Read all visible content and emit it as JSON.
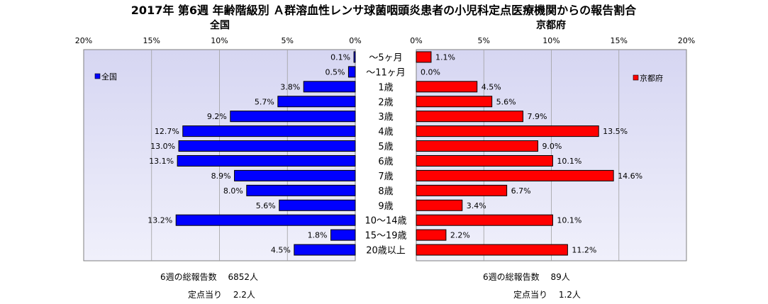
{
  "chart_data": {
    "type": "bar",
    "title": "2017年 第6週 年齢階級別 Ａ群溶血性レンサ球菌咽頭炎患者の小児科定点医療機関からの報告割合",
    "categories": [
      "～5ヶ月",
      "～11ヶ月",
      "1歳",
      "2歳",
      "3歳",
      "4歳",
      "5歳",
      "6歳",
      "7歳",
      "8歳",
      "9歳",
      "10～14歳",
      "15～19歳",
      "20歳以上"
    ],
    "xlim": [
      0,
      20
    ],
    "tick_labels": [
      "0%",
      "5%",
      "10%",
      "15%",
      "20%"
    ],
    "grid": true,
    "series": [
      {
        "name": "全国",
        "panel_title": "全国",
        "legend": "全国",
        "side": "left",
        "color": "#0000ff",
        "values": [
          0.1,
          0.5,
          3.8,
          5.7,
          9.2,
          12.7,
          13.0,
          13.1,
          8.9,
          8.0,
          5.6,
          13.2,
          1.8,
          4.5
        ],
        "value_labels": [
          "0.1%",
          "0.5%",
          "3.8%",
          "5.7%",
          "9.2%",
          "12.7%",
          "13.0%",
          "13.1%",
          "8.9%",
          "8.0%",
          "5.6%",
          "13.2%",
          "1.8%",
          "4.5%"
        ]
      },
      {
        "name": "京都府",
        "panel_title": "京都府",
        "legend": "京都府",
        "side": "right",
        "color": "#ff0000",
        "values": [
          1.1,
          0.0,
          4.5,
          5.6,
          7.9,
          13.5,
          9.0,
          10.1,
          14.6,
          6.7,
          3.4,
          10.1,
          2.2,
          11.2
        ],
        "value_labels": [
          "1.1%",
          "0.0%",
          "4.5%",
          "5.6%",
          "7.9%",
          "13.5%",
          "9.0%",
          "10.1%",
          "14.6%",
          "6.7%",
          "3.4%",
          "10.1%",
          "2.2%",
          "11.2%"
        ]
      }
    ]
  },
  "summary": {
    "left_total": "6週の総報告数　 6852人",
    "left_per_point": "定点当り　 2.2人",
    "right_total": "6週の総報告数　 89人",
    "right_per_point": "定点当り　 1.2人"
  }
}
